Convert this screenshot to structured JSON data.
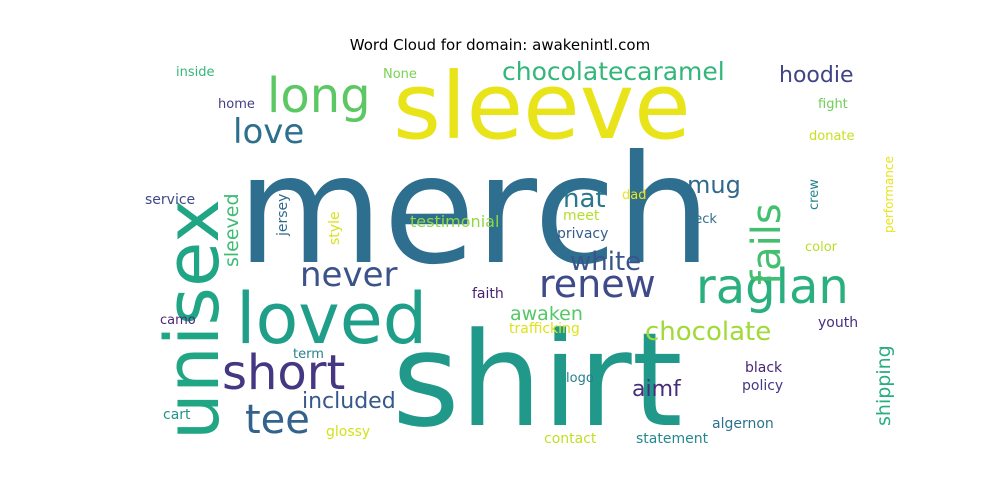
{
  "chart_data": {
    "type": "wordcloud",
    "title": "Word Cloud for domain: awakenintl.com",
    "words": [
      {
        "text": "merch",
        "color": "#2e6e8e"
      },
      {
        "text": "shirt",
        "color": "#21998a"
      },
      {
        "text": "sleeve",
        "color": "#e8e419"
      },
      {
        "text": "unisex",
        "color": "#21a685"
      },
      {
        "text": "loved",
        "color": "#1f9e89"
      },
      {
        "text": "long",
        "color": "#5cc863"
      },
      {
        "text": "raglan",
        "color": "#2ab07f"
      },
      {
        "text": "short",
        "color": "#453781"
      },
      {
        "text": "never",
        "color": "#3b528b"
      },
      {
        "text": "renew",
        "color": "#3e4a89"
      },
      {
        "text": "fails",
        "color": "#44bf70"
      },
      {
        "text": "tee",
        "color": "#33638d"
      },
      {
        "text": "love",
        "color": "#2d708e"
      },
      {
        "text": "chocolatecaramel",
        "color": "#32b67a"
      },
      {
        "text": "chocolate",
        "color": "#a0da39"
      },
      {
        "text": "white",
        "color": "#3a548c"
      },
      {
        "text": "hat",
        "color": "#2a788e"
      },
      {
        "text": "mug",
        "color": "#31688e"
      },
      {
        "text": "hoodie",
        "color": "#414487"
      },
      {
        "text": "included",
        "color": "#38588c"
      },
      {
        "text": "awaken",
        "color": "#56c667"
      },
      {
        "text": "aimf",
        "color": "#472c7a"
      },
      {
        "text": "sleeved",
        "color": "#3dbc74"
      },
      {
        "text": "shipping",
        "color": "#28ae80"
      },
      {
        "text": "testimonial",
        "color": "#90d743"
      },
      {
        "text": "privacy",
        "color": "#365c8d"
      },
      {
        "text": "meet",
        "color": "#b5de2b"
      },
      {
        "text": "style",
        "color": "#d8e219"
      },
      {
        "text": "jersey",
        "color": "#306a8e"
      },
      {
        "text": "faith",
        "color": "#481f70"
      },
      {
        "text": "trafficking",
        "color": "#dde318"
      },
      {
        "text": "youth",
        "color": "#46307e"
      },
      {
        "text": "black",
        "color": "#482576"
      },
      {
        "text": "policy",
        "color": "#443983"
      },
      {
        "text": "algernon",
        "color": "#2c728e"
      },
      {
        "text": "statement",
        "color": "#23898e"
      },
      {
        "text": "contact",
        "color": "#c0df25"
      },
      {
        "text": "glossy",
        "color": "#d2e21b"
      },
      {
        "text": "cart",
        "color": "#1f948c"
      },
      {
        "text": "logo",
        "color": "#277f8e"
      },
      {
        "text": "term",
        "color": "#26828e"
      },
      {
        "text": "camo",
        "color": "#482878"
      },
      {
        "text": "service",
        "color": "#3f4889"
      },
      {
        "text": "home",
        "color": "#433e85"
      },
      {
        "text": "inside",
        "color": "#35b779"
      },
      {
        "text": "None",
        "color": "#7ad151"
      },
      {
        "text": "fight",
        "color": "#6ece58"
      },
      {
        "text": "donate",
        "color": "#c8e020"
      },
      {
        "text": "performance",
        "color": "#e7e419"
      },
      {
        "text": "crew",
        "color": "#25848e"
      },
      {
        "text": "color",
        "color": "#b8de29"
      },
      {
        "text": "neck",
        "color": "#2e6f8e"
      },
      {
        "text": "dad",
        "color": "#ece51b"
      }
    ]
  }
}
